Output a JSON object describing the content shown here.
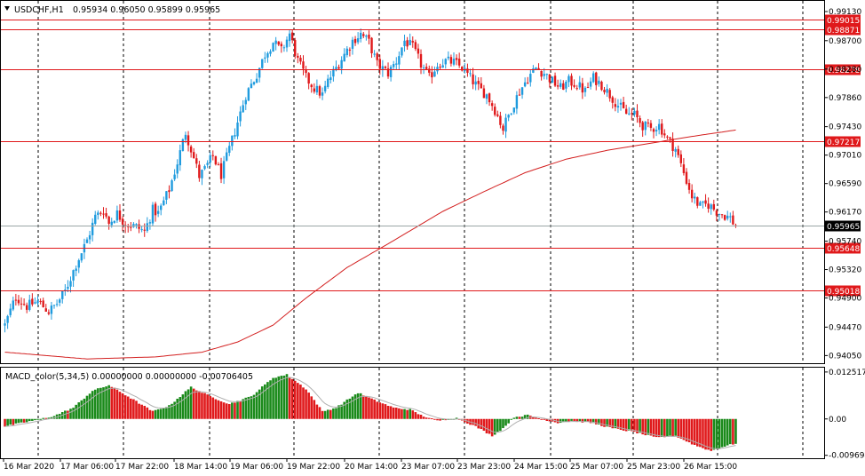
{
  "header": {
    "symbol_tf": "USDCHF,H1",
    "ohlc": "0.95934 0.96050 0.95899 0.95965"
  },
  "macd_header": {
    "label": "MACD_color(5,34,5) 0.00000000 0.00000000 -0.00706405"
  },
  "colors": {
    "bull": "#1f9bde",
    "bear": "#e0191b",
    "level": "#e0191b",
    "ma": "#d32020",
    "macd_up": "#1a8a1a",
    "macd_down": "#e0191b",
    "signal": "#b0b0b0",
    "grid": "#000000",
    "current_price_bg": "#000000"
  },
  "chart_data": [
    {
      "type": "candlestick",
      "title": "USDCHF,H1",
      "ylim": [
        0.9395,
        0.9913
      ],
      "y_ticks": [
        "0.99130",
        "0.98700",
        "0.98280",
        "0.97860",
        "0.97430",
        "0.97010",
        "0.96590",
        "0.96170",
        "0.95740",
        "0.95320",
        "0.94900",
        "0.94470",
        "0.94050"
      ],
      "y_tick_values": [
        0.9913,
        0.987,
        0.9828,
        0.9786,
        0.9743,
        0.9701,
        0.9659,
        0.9617,
        0.9574,
        0.9532,
        0.949,
        0.9447,
        0.9405
      ],
      "x_ticks": [
        "16 Mar 2020",
        "17 Mar 06:00",
        "17 Mar 22:00",
        "18 Mar 14:00",
        "19 Mar 06:00",
        "19 Mar 22:00",
        "20 Mar 14:00",
        "23 Mar 07:00",
        "23 Mar 23:00",
        "24 Mar 15:00",
        "25 Mar 07:00",
        "25 Mar 23:00",
        "26 Mar 15:00"
      ],
      "horizontal_levels": [
        "0.99015",
        "0.98871",
        "0.98278",
        "0.97217",
        "0.95648",
        "0.95018"
      ],
      "horizontal_level_values": [
        0.99015,
        0.98871,
        0.98278,
        0.97217,
        0.95648,
        0.95018
      ],
      "current_price": "0.95965",
      "current_price_value": 0.95965,
      "close_path": [
        [
          0,
          0.945
        ],
        [
          4,
          0.9492
        ],
        [
          8,
          0.9478
        ],
        [
          12,
          0.9485
        ],
        [
          16,
          0.947
        ],
        [
          19,
          0.9482
        ],
        [
          22,
          0.95
        ],
        [
          26,
          0.954
        ],
        [
          30,
          0.9575
        ],
        [
          33,
          0.961
        ],
        [
          36,
          0.962
        ],
        [
          38,
          0.96
        ],
        [
          41,
          0.9615
        ],
        [
          44,
          0.96
        ],
        [
          48,
          0.9595
        ],
        [
          51,
          0.9588
        ],
        [
          54,
          0.962
        ],
        [
          56,
          0.9615
        ],
        [
          60,
          0.965
        ],
        [
          63,
          0.969
        ],
        [
          66,
          0.9735
        ],
        [
          68,
          0.971
        ],
        [
          71,
          0.967
        ],
        [
          73,
          0.968
        ],
        [
          76,
          0.97
        ],
        [
          79,
          0.9672
        ],
        [
          82,
          0.971
        ],
        [
          85,
          0.975
        ],
        [
          88,
          0.979
        ],
        [
          92,
          0.982
        ],
        [
          95,
          0.985
        ],
        [
          98,
          0.9868
        ],
        [
          101,
          0.9855
        ],
        [
          104,
          0.988
        ],
        [
          107,
          0.984
        ],
        [
          110,
          0.9815
        ],
        [
          113,
          0.98
        ],
        [
          116,
          0.979
        ],
        [
          118,
          0.981
        ],
        [
          121,
          0.983
        ],
        [
          124,
          0.985
        ],
        [
          127,
          0.987
        ],
        [
          130,
          0.988
        ],
        [
          133,
          0.9868
        ],
        [
          136,
          0.9835
        ],
        [
          140,
          0.9822
        ],
        [
          143,
          0.984
        ],
        [
          146,
          0.987
        ],
        [
          149,
          0.986
        ],
        [
          152,
          0.9835
        ],
        [
          155,
          0.9815
        ],
        [
          158,
          0.9835
        ],
        [
          161,
          0.984
        ],
        [
          164,
          0.9838
        ],
        [
          167,
          0.983
        ],
        [
          170,
          0.9815
        ],
        [
          173,
          0.98
        ],
        [
          176,
          0.979
        ],
        [
          179,
          0.9768
        ],
        [
          182,
          0.974
        ],
        [
          185,
          0.977
        ],
        [
          188,
          0.9795
        ],
        [
          191,
          0.9815
        ],
        [
          194,
          0.983
        ],
        [
          197,
          0.9822
        ],
        [
          200,
          0.981
        ],
        [
          203,
          0.98
        ],
        [
          206,
          0.981
        ],
        [
          209,
          0.9805
        ],
        [
          212,
          0.9795
        ],
        [
          215,
          0.9815
        ],
        [
          218,
          0.9805
        ],
        [
          221,
          0.979
        ],
        [
          224,
          0.9775
        ],
        [
          227,
          0.9762
        ],
        [
          230,
          0.976
        ],
        [
          233,
          0.9745
        ],
        [
          236,
          0.974
        ],
        [
          239,
          0.9745
        ],
        [
          242,
          0.9725
        ],
        [
          245,
          0.971
        ],
        [
          248,
          0.9675
        ],
        [
          251,
          0.964
        ],
        [
          254,
          0.9625
        ],
        [
          257,
          0.9628
        ],
        [
          260,
          0.9618
        ],
        [
          263,
          0.9612
        ],
        [
          265,
          0.9608
        ],
        [
          267,
          0.9596
        ]
      ],
      "ma_path": [
        [
          0,
          0.941
        ],
        [
          30,
          0.94
        ],
        [
          55,
          0.9403
        ],
        [
          72,
          0.941
        ],
        [
          85,
          0.9425
        ],
        [
          98,
          0.945
        ],
        [
          110,
          0.949
        ],
        [
          125,
          0.9535
        ],
        [
          140,
          0.957
        ],
        [
          160,
          0.9618
        ],
        [
          175,
          0.9647
        ],
        [
          190,
          0.9675
        ],
        [
          205,
          0.9695
        ],
        [
          220,
          0.9708
        ],
        [
          235,
          0.9718
        ],
        [
          250,
          0.9728
        ],
        [
          267,
          0.9738
        ]
      ]
    },
    {
      "type": "bar",
      "title": "MACD_color(5,34,5)",
      "ylim": [
        -0.01,
        0.0132
      ],
      "y_ticks": [
        "0.0125173",
        "0.00",
        "-0.009694"
      ],
      "y_tick_values": [
        0.0125173,
        0.0,
        -0.009694
      ],
      "values_path": [
        [
          0,
          -0.002
        ],
        [
          10,
          -0.0005
        ],
        [
          18,
          0.0008
        ],
        [
          25,
          0.003
        ],
        [
          32,
          0.0075
        ],
        [
          38,
          0.009
        ],
        [
          45,
          0.006
        ],
        [
          54,
          0.002
        ],
        [
          60,
          0.0035
        ],
        [
          68,
          0.0085
        ],
        [
          75,
          0.006
        ],
        [
          82,
          0.004
        ],
        [
          90,
          0.006
        ],
        [
          98,
          0.011
        ],
        [
          103,
          0.0118
        ],
        [
          110,
          0.008
        ],
        [
          116,
          0.002
        ],
        [
          121,
          0.003
        ],
        [
          129,
          0.007
        ],
        [
          135,
          0.005
        ],
        [
          142,
          0.003
        ],
        [
          148,
          0.0025
        ],
        [
          152,
          0.001
        ],
        [
          158,
          -0.0005
        ],
        [
          165,
          0.0002
        ],
        [
          172,
          -0.002
        ],
        [
          178,
          -0.0045
        ],
        [
          182,
          -0.0025
        ],
        [
          186,
          0.0005
        ],
        [
          191,
          0.001
        ],
        [
          196,
          0.0
        ],
        [
          202,
          -0.001
        ],
        [
          207,
          -0.0005
        ],
        [
          214,
          -0.001
        ],
        [
          222,
          -0.0025
        ],
        [
          230,
          -0.0035
        ],
        [
          238,
          -0.005
        ],
        [
          245,
          -0.0045
        ],
        [
          252,
          -0.007
        ],
        [
          258,
          -0.0085
        ],
        [
          262,
          -0.0075
        ],
        [
          267,
          -0.0065
        ]
      ]
    }
  ]
}
